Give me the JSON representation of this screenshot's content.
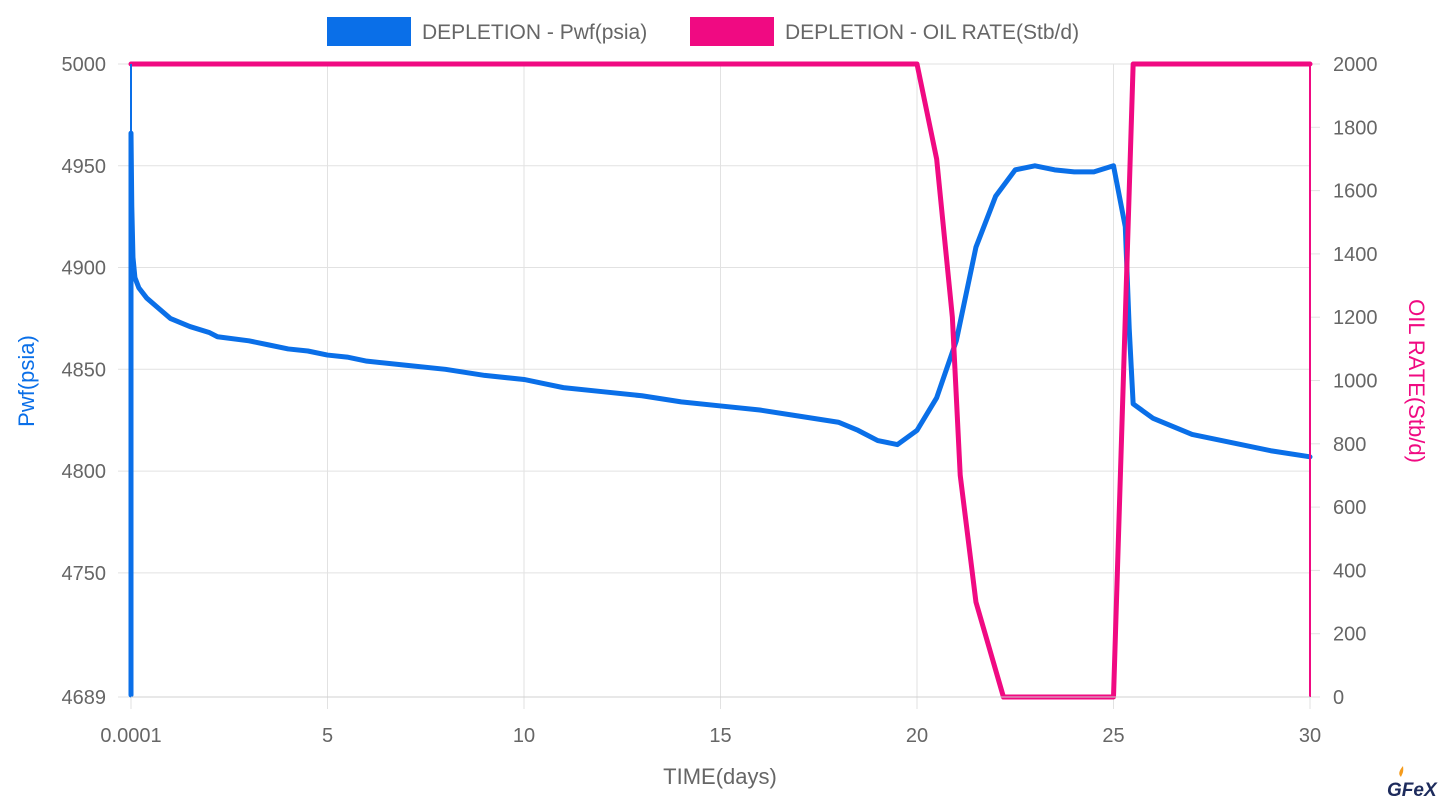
{
  "chart_data": {
    "type": "line",
    "x": {
      "label": "TIME(days)",
      "range": [
        0.0001,
        30
      ],
      "ticks": [
        "0.0001",
        "5",
        "10",
        "15",
        "20",
        "25",
        "30"
      ],
      "tick_values": [
        0.0001,
        5,
        10,
        15,
        20,
        25,
        30
      ]
    },
    "y_left": {
      "label": "Pwf(psia)",
      "range": [
        4689,
        5000
      ],
      "ticks": [
        4689,
        4750,
        4800,
        4850,
        4900,
        4950,
        5000
      ]
    },
    "y_right": {
      "label": "OIL RATE(Stb/d)",
      "range": [
        0,
        2000
      ],
      "ticks": [
        0,
        200,
        400,
        600,
        800,
        1000,
        1200,
        1400,
        1600,
        1800,
        2000
      ]
    },
    "grid": true,
    "legend_position": "top-center",
    "series": [
      {
        "name": "DEPLETION - Pwf(psia)",
        "axis": "left",
        "color": "#0a6fe8",
        "points": [
          [
            0.0001,
            4690
          ],
          [
            0.0001,
            4966
          ],
          [
            0.02,
            4930
          ],
          [
            0.05,
            4905
          ],
          [
            0.1,
            4895
          ],
          [
            0.2,
            4890
          ],
          [
            0.4,
            4885
          ],
          [
            0.7,
            4880
          ],
          [
            1.0,
            4875
          ],
          [
            1.5,
            4871
          ],
          [
            2.0,
            4868
          ],
          [
            2.2,
            4866
          ],
          [
            3.0,
            4864
          ],
          [
            3.5,
            4862
          ],
          [
            4.0,
            4860
          ],
          [
            4.5,
            4859
          ],
          [
            5.0,
            4857
          ],
          [
            5.5,
            4856
          ],
          [
            6.0,
            4854
          ],
          [
            7.0,
            4852
          ],
          [
            8.0,
            4850
          ],
          [
            9.0,
            4847
          ],
          [
            10.0,
            4845
          ],
          [
            11.0,
            4841
          ],
          [
            12.0,
            4839
          ],
          [
            13.0,
            4837
          ],
          [
            14.0,
            4834
          ],
          [
            15.0,
            4832
          ],
          [
            16.0,
            4830
          ],
          [
            17.0,
            4827
          ],
          [
            18.0,
            4824
          ],
          [
            18.5,
            4820
          ],
          [
            19.0,
            4815
          ],
          [
            19.5,
            4813
          ],
          [
            20.0,
            4820
          ],
          [
            20.5,
            4836
          ],
          [
            21.0,
            4864
          ],
          [
            21.5,
            4910
          ],
          [
            22.0,
            4935
          ],
          [
            22.5,
            4948
          ],
          [
            23.0,
            4950
          ],
          [
            23.5,
            4948
          ],
          [
            24.0,
            4947
          ],
          [
            24.5,
            4947
          ],
          [
            25.0,
            4950
          ],
          [
            25.3,
            4920
          ],
          [
            25.4,
            4870
          ],
          [
            25.5,
            4833
          ],
          [
            26.0,
            4826
          ],
          [
            27.0,
            4818
          ],
          [
            28.0,
            4814
          ],
          [
            29.0,
            4810
          ],
          [
            30.0,
            4807
          ]
        ]
      },
      {
        "name": "DEPLETION - OIL RATE(Stb/d)",
        "axis": "right",
        "color": "#f00a82",
        "points": [
          [
            0.0001,
            2000
          ],
          [
            20.0,
            2000
          ],
          [
            20.5,
            1700
          ],
          [
            20.9,
            1200
          ],
          [
            21.1,
            700
          ],
          [
            21.5,
            300
          ],
          [
            22.2,
            0
          ],
          [
            25.0,
            0
          ],
          [
            25.3,
            1200
          ],
          [
            25.5,
            2000
          ],
          [
            30.0,
            2000
          ]
        ]
      }
    ]
  },
  "logo": {
    "text": "GFeX",
    "flame_color": "#f59b1c"
  }
}
